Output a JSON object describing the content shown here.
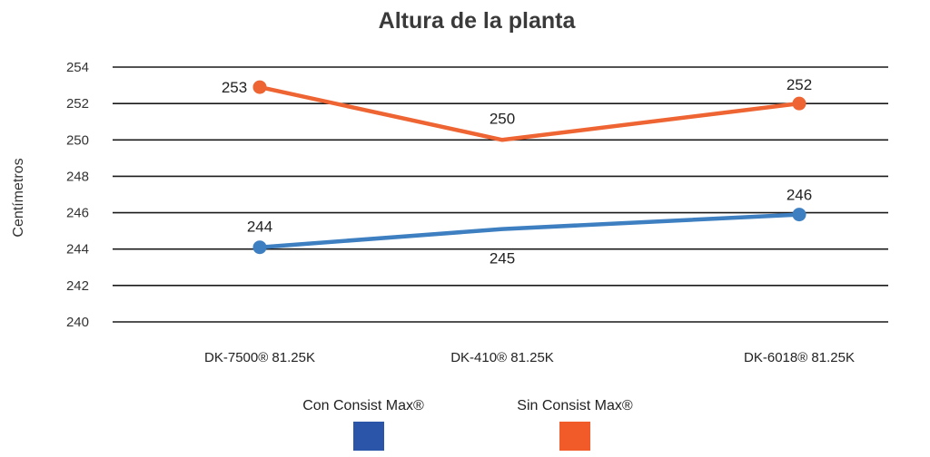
{
  "chart_data": {
    "type": "line",
    "title": "Altura de la planta",
    "xlabel": "",
    "ylabel": "Centímetros",
    "categories": [
      "DK-7500® 81.25K",
      "DK-410® 81.25K",
      "DK-6018® 81.25K"
    ],
    "ylim": [
      240,
      254
    ],
    "yticks": [
      240,
      242,
      244,
      246,
      248,
      250,
      252,
      254
    ],
    "grid": true,
    "legend_position": "bottom",
    "series": [
      {
        "name": "Con Consist Max®",
        "values": [
          244.1,
          245.1,
          245.9
        ],
        "labels": [
          "244",
          "245",
          "246"
        ],
        "color": "#3d7fc1",
        "legend_color": "#2b55a8"
      },
      {
        "name": "Sin Consist Max®",
        "values": [
          252.9,
          250,
          252
        ],
        "labels": [
          "253",
          "250",
          "252"
        ],
        "color": "#ee6432",
        "legend_color": "#f15a29"
      }
    ]
  }
}
